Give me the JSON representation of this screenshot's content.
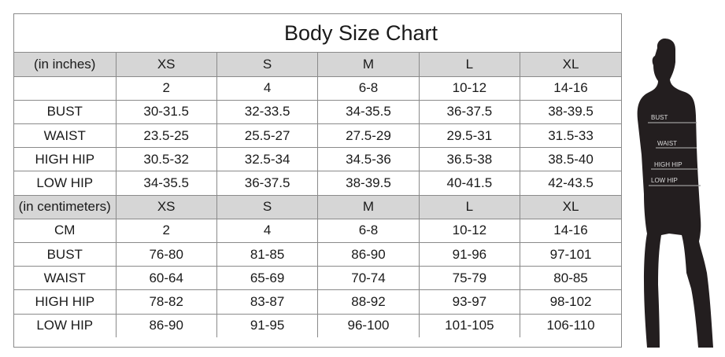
{
  "title": "Body Size Chart",
  "inches": {
    "header": [
      "(in inches)",
      "XS",
      "S",
      "M",
      "L",
      "XL"
    ],
    "rows": [
      [
        "",
        "2",
        "4",
        "6-8",
        "10-12",
        "14-16"
      ],
      [
        "BUST",
        "30-31.5",
        "32-33.5",
        "34-35.5",
        "36-37.5",
        "38-39.5"
      ],
      [
        "WAIST",
        "23.5-25",
        "25.5-27",
        "27.5-29",
        "29.5-31",
        "31.5-33"
      ],
      [
        "HIGH HIP",
        "30.5-32",
        "32.5-34",
        "34.5-36",
        "36.5-38",
        "38.5-40"
      ],
      [
        "LOW HIP",
        "34-35.5",
        "36-37.5",
        "38-39.5",
        "40-41.5",
        "42-43.5"
      ]
    ]
  },
  "centimeters": {
    "header": [
      "(in centimeters)",
      "XS",
      "S",
      "M",
      "L",
      "XL"
    ],
    "rows": [
      [
        "CM",
        "2",
        "4",
        "6-8",
        "10-12",
        "14-16"
      ],
      [
        "BUST",
        "76-80",
        "81-85",
        "86-90",
        "91-96",
        "97-101"
      ],
      [
        "WAIST",
        "60-64",
        "65-69",
        "70-74",
        "75-79",
        "80-85"
      ],
      [
        "HIGH HIP",
        "78-82",
        "83-87",
        "88-92",
        "93-97",
        "98-102"
      ],
      [
        "LOW HIP",
        "86-90",
        "91-95",
        "96-100",
        "101-105",
        "106-110"
      ]
    ]
  },
  "figure": {
    "labels": [
      "BUST",
      "WAIST",
      "HIGH HIP",
      "LOW HIP"
    ]
  },
  "colors": {
    "header_bg": "#d6d6d6",
    "border": "#8a8a8a",
    "silhouette": "#231e1f"
  }
}
